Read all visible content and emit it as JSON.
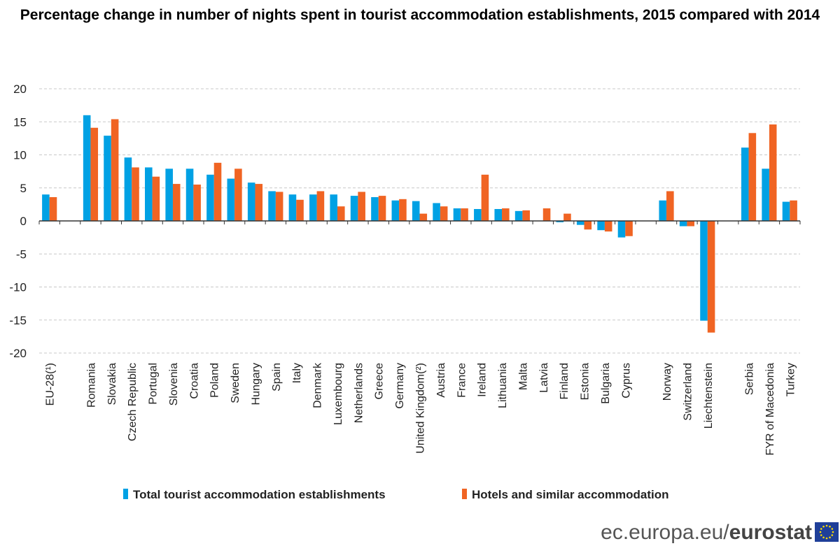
{
  "chart_data": {
    "type": "bar",
    "title": "Percentage change in number of nights spent in tourist accommodation establishments, 2015 compared with 2014",
    "xlabel": "",
    "ylabel": "",
    "ylim": [
      -20,
      20
    ],
    "yticks": [
      20,
      15,
      10,
      5,
      0,
      -5,
      -10,
      -15,
      -20
    ],
    "grid": true,
    "legend_position": "bottom",
    "categories": [
      "EU-28(¹)",
      "Romania",
      "Slovakia",
      "Czech Republic",
      "Portugal",
      "Slovenia",
      "Croatia",
      "Poland",
      "Sweden",
      "Hungary",
      "Spain",
      "Italy",
      "Denmark",
      "Luxembourg",
      "Netherlands",
      "Greece",
      "Germany",
      "United Kingdom(²)",
      "Austria",
      "France",
      "Ireland",
      "Lithuania",
      "Malta",
      "Latvia",
      "Finland",
      "Estonia",
      "Bulgaria",
      "Cyprus",
      "Norway",
      "Switzerland",
      "Liechtenstein",
      "Serbia",
      "FYR of Macedonia",
      "Turkey"
    ],
    "series": [
      {
        "name": "Total tourist accommodation establishments",
        "color": "#00a1e4",
        "values": [
          4.0,
          16.0,
          12.9,
          9.6,
          8.1,
          7.9,
          7.9,
          7.0,
          6.4,
          5.8,
          4.5,
          4.0,
          4.0,
          4.0,
          3.8,
          3.6,
          3.1,
          3.0,
          2.7,
          1.9,
          1.8,
          1.8,
          1.5,
          null,
          -0.2,
          -0.6,
          -1.4,
          -2.5,
          3.1,
          -0.8,
          -15.1,
          11.1,
          7.9,
          2.9
        ]
      },
      {
        "name": "Hotels and similar accommodation",
        "color": "#f06423",
        "values": [
          3.6,
          14.1,
          15.4,
          8.1,
          6.7,
          5.6,
          5.5,
          8.8,
          7.9,
          5.6,
          4.4,
          3.2,
          4.5,
          2.2,
          4.4,
          3.8,
          3.3,
          1.1,
          2.2,
          1.9,
          7.0,
          1.9,
          1.6,
          1.9,
          1.1,
          -1.3,
          -1.6,
          -2.3,
          4.5,
          -0.8,
          -16.9,
          13.3,
          14.6,
          3.1
        ]
      }
    ]
  },
  "footer": {
    "site": "ec.europa.eu/",
    "brand": "eurostat"
  }
}
